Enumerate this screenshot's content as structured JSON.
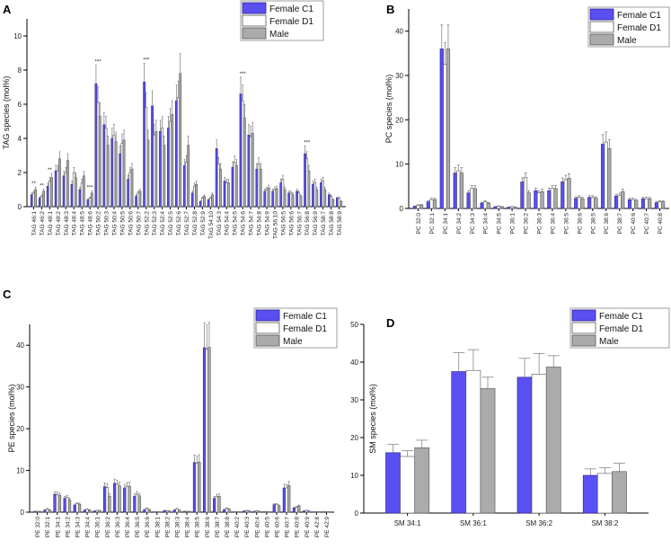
{
  "colors": {
    "female_c1": "#5a4ff0",
    "female_d1": "#ffffff",
    "male": "#ababab"
  },
  "chart_data": [
    {
      "panel": "A",
      "type": "bar",
      "ylabel": "TAG species (mol%)",
      "ylim": [
        0,
        11
      ],
      "yticks": [
        0,
        2,
        4,
        6,
        8,
        10
      ],
      "legend": {
        "position": "top-right",
        "entries": [
          "Female C1",
          "Female D1",
          "Male"
        ]
      },
      "categories": [
        "TAG 46:1",
        "TAG 46:2",
        "TAG 48:1",
        "TAG 48:2",
        "TAG 48:3",
        "TAG 48:4",
        "TAG 48:5",
        "TAG 48:6",
        "TAG 50:2",
        "TAG 50:3",
        "TAG 50:4",
        "TAG 50:5",
        "TAG 50:6",
        "TAG 50:7",
        "TAG 52:2",
        "TAG 52:3",
        "TAG 52:4",
        "TAG 52:5",
        "TAG 52:6",
        "TAG 52:7",
        "TAG 52:8",
        "TAG 52:9",
        "TAG 54:10",
        "TAG 54:3",
        "TAG 54:4",
        "TAG 54:5",
        "TAG 54:6",
        "TAG 54:7",
        "TAG 54:8",
        "TAG 54:9",
        "TAG 56:10",
        "TAG 56:5",
        "TAG 56:6",
        "TAG 56:7",
        "TAG 56:8",
        "TAG 56:9",
        "TAG 58:7",
        "TAG 58:8",
        "TAG 58:9"
      ],
      "series": [
        {
          "name": "Female C1",
          "values": [
            0.7,
            0.5,
            1.2,
            2.1,
            1.8,
            1.3,
            1.0,
            0.4,
            7.2,
            4.8,
            4.0,
            3.1,
            1.6,
            0.6,
            7.3,
            5.9,
            4.4,
            4.6,
            6.2,
            2.4,
            0.8,
            0.3,
            0.4,
            3.4,
            1.5,
            2.3,
            6.6,
            4.2,
            2.2,
            0.9,
            0.9,
            1.4,
            0.8,
            0.9,
            3.1,
            1.3,
            1.4,
            0.7,
            0.5
          ]
        },
        {
          "name": "Female D1",
          "values": [
            0.8,
            0.6,
            1.5,
            2.1,
            2.0,
            2.0,
            1.4,
            0.5,
            6.1,
            4.6,
            4.2,
            3.7,
            2.0,
            0.8,
            5.8,
            4.2,
            4.6,
            5.0,
            6.4,
            2.6,
            1.2,
            0.5,
            0.5,
            2.5,
            1.4,
            2.6,
            6.2,
            4.1,
            2.5,
            1.0,
            1.0,
            1.6,
            0.8,
            0.8,
            2.8,
            1.4,
            1.5,
            0.6,
            0.5
          ]
        },
        {
          "name": "Male",
          "values": [
            1.0,
            0.9,
            1.7,
            2.8,
            2.7,
            1.7,
            1.8,
            0.8,
            5.3,
            3.6,
            3.8,
            3.9,
            2.2,
            0.9,
            3.9,
            4.4,
            3.6,
            5.4,
            7.8,
            3.6,
            1.3,
            0.6,
            0.7,
            2.2,
            1.4,
            2.4,
            5.2,
            4.3,
            2.2,
            1.1,
            1.05,
            1.0,
            0.7,
            0.6,
            2.1,
            1.0,
            1.0,
            0.4,
            0.3
          ]
        }
      ],
      "annotations": [
        {
          "category": "TAG 46:1",
          "text": "**"
        },
        {
          "category": "TAG 46:2",
          "text": "**"
        },
        {
          "category": "TAG 48:1",
          "text": "**"
        },
        {
          "category": "TAG 48:6",
          "text": "***"
        },
        {
          "category": "TAG 50:2",
          "text": "***"
        },
        {
          "category": "TAG 52:2",
          "text": "***"
        },
        {
          "category": "TAG 54:6",
          "text": "***"
        },
        {
          "category": "TAG 56:8",
          "text": "***"
        }
      ]
    },
    {
      "panel": "B",
      "type": "bar",
      "ylabel": "PC species (mol%)",
      "ylim": [
        0,
        45
      ],
      "yticks": [
        0,
        10,
        20,
        30,
        40
      ],
      "legend": {
        "position": "top-right",
        "entries": [
          "Female C1",
          "Female D1",
          "Male"
        ]
      },
      "categories": [
        "PC 32:0",
        "PC 32:1",
        "PC 34:1",
        "PC 34:2",
        "PC 34:3",
        "PC 34:4",
        "PC 34:5",
        "PC 36:1",
        "PC 36:2",
        "PC 36:3",
        "PC 36:4",
        "PC 36:5",
        "PC 36:6",
        "PC 38:5",
        "PC 38:6",
        "PC 38:7",
        "PC 40:6",
        "PC 40:7",
        "PC 40:8"
      ],
      "series": [
        {
          "name": "Female C1",
          "values": [
            0.5,
            1.5,
            36,
            8,
            3.5,
            1.2,
            0.4,
            0.3,
            6,
            4,
            4,
            6,
            2.3,
            2.5,
            14.5,
            2.8,
            2.0,
            2.2,
            1.3
          ]
        },
        {
          "name": "Female D1",
          "values": [
            0.7,
            2.0,
            32.5,
            8.5,
            4.5,
            1.5,
            0.5,
            0.4,
            7,
            3.5,
            4.5,
            6.5,
            2.5,
            2.5,
            15,
            3.0,
            2.0,
            2.2,
            1.5
          ]
        },
        {
          "name": "Male",
          "values": [
            0.8,
            2.0,
            36,
            8,
            4.5,
            1.2,
            0.4,
            0.3,
            3.5,
            3.8,
            4.5,
            6.8,
            2.2,
            2.3,
            13.5,
            3.8,
            1.8,
            2.2,
            1.5
          ]
        }
      ]
    },
    {
      "panel": "C",
      "type": "bar",
      "ylabel": "PE species (mol%)",
      "ylim": [
        0,
        45
      ],
      "yticks": [
        0,
        10,
        20,
        30,
        40
      ],
      "legend": {
        "position": "top-right",
        "entries": [
          "Female C1",
          "Female D1",
          "Male"
        ]
      },
      "categories": [
        "PE 32:0",
        "PE 32:1",
        "PE 34:1",
        "PE 34:2",
        "PE 34:3",
        "PE 34:4",
        "PE 36:1",
        "PE 36:2",
        "PE 36:3",
        "PE 36:4",
        "PE 36:5",
        "PE 36:6",
        "PE 38:1",
        "PE 38:2",
        "PE 38:3",
        "PE 38:4",
        "PE 38:5",
        "PE 38:6",
        "PE 38:7",
        "PE 38:8",
        "PE 40:2",
        "PE 40:3",
        "PE 40:4",
        "PE 40:5",
        "PE 40:6",
        "PE 40:7",
        "PE 40:8",
        "PE 40:9",
        "PE 42:8",
        "PE 42:9"
      ],
      "series": [
        {
          "name": "Female C1",
          "values": [
            0.2,
            0.5,
            4.3,
            3.3,
            1.7,
            0.5,
            0.3,
            6.1,
            6.9,
            5.8,
            3.8,
            0.6,
            0.1,
            0.4,
            0.5,
            0.2,
            11.9,
            39.4,
            3.3,
            0.6,
            0.1,
            0.3,
            0.2,
            0.1,
            1.8,
            5.8,
            1.0,
            0.3,
            0.1,
            0.1
          ]
        },
        {
          "name": "Female D1",
          "values": [
            0.2,
            0.8,
            4.2,
            3.5,
            2.0,
            0.7,
            0.4,
            5.9,
            6.7,
            6.2,
            4.3,
            0.9,
            0.1,
            0.3,
            0.8,
            0.2,
            11.7,
            39.0,
            3.7,
            0.9,
            0.1,
            0.4,
            0.3,
            0.1,
            1.8,
            5.8,
            1.2,
            0.4,
            0.1,
            0.1
          ]
        },
        {
          "name": "Male",
          "values": [
            0.2,
            0.5,
            4.0,
            2.9,
            1.9,
            0.5,
            0.4,
            3.8,
            6.3,
            6.2,
            3.9,
            0.6,
            0.1,
            0.3,
            0.5,
            0.2,
            12.0,
            39.5,
            3.8,
            0.7,
            0.1,
            0.3,
            0.2,
            0.1,
            1.5,
            6.4,
            1.5,
            0.3,
            0.1,
            0.1
          ]
        }
      ]
    },
    {
      "panel": "D",
      "type": "bar",
      "ylabel": "SM species (mol%)",
      "ylim": [
        0,
        50
      ],
      "yticks": [
        0,
        10,
        20,
        30,
        40,
        50
      ],
      "legend": {
        "position": "top-right",
        "entries": [
          "Female C1",
          "Female D1",
          "Male"
        ]
      },
      "categories": [
        "SM 34:1",
        "SM 36:1",
        "SM 36:2",
        "SM 38:2"
      ],
      "series": [
        {
          "name": "Female C1",
          "values": [
            16,
            37.5,
            36,
            10
          ],
          "errors": [
            2.2,
            5,
            5,
            1.7
          ]
        },
        {
          "name": "Female D1",
          "values": [
            15,
            37.8,
            36.8,
            10.5
          ],
          "errors": [
            1.5,
            5.5,
            5.5,
            1.5
          ]
        },
        {
          "name": "Male",
          "values": [
            17.3,
            33,
            38.7,
            11
          ],
          "errors": [
            2,
            3,
            3,
            2.2
          ]
        }
      ]
    }
  ]
}
